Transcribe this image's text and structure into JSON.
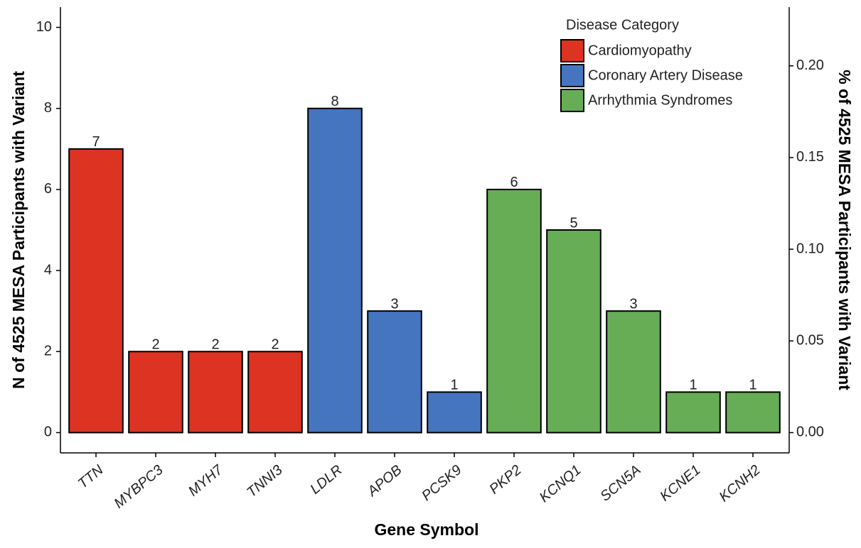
{
  "chart_data": {
    "type": "bar",
    "categories": [
      "TTN",
      "MYBPC3",
      "MYH7",
      "TNNI3",
      "LDLR",
      "APOB",
      "PCSK9",
      "PKP2",
      "KCNQ1",
      "SCN5A",
      "KCNE1",
      "KCNH2"
    ],
    "series": [
      {
        "name": "Cardiomyopathy",
        "color": "#dc3323",
        "values": [
          7,
          2,
          2,
          2,
          null,
          null,
          null,
          null,
          null,
          null,
          null,
          null
        ]
      },
      {
        "name": "Coronary Artery Disease",
        "color": "#4575be",
        "values": [
          null,
          null,
          null,
          null,
          8,
          3,
          1,
          null,
          null,
          null,
          null,
          null
        ]
      },
      {
        "name": "Arrhythmia Syndromes",
        "color": "#66ad56",
        "values": [
          null,
          null,
          null,
          null,
          null,
          null,
          null,
          6,
          5,
          3,
          1,
          1
        ]
      }
    ],
    "legend_title": "Disease Category",
    "legend_position": "top-right",
    "x_label": "Gene Symbol",
    "y_label": "N of 4525 MESA Participants with Variant",
    "y2_label": "% of 4525 MESA Participants with Variant",
    "ylim": [
      -0.5,
      10.5
    ],
    "yticks": [
      0,
      2,
      4,
      6,
      8,
      10
    ],
    "y2lim": [
      -0.01105,
      0.23204
    ],
    "y2ticks": [
      {
        "value": 0,
        "label": "0.00"
      },
      {
        "value": 0.05,
        "label": "0.05"
      },
      {
        "value": 0.1,
        "label": "0.10"
      },
      {
        "value": 0.15,
        "label": "0.15"
      },
      {
        "value": 0.2,
        "label": "0.20"
      }
    ],
    "grid": false
  }
}
